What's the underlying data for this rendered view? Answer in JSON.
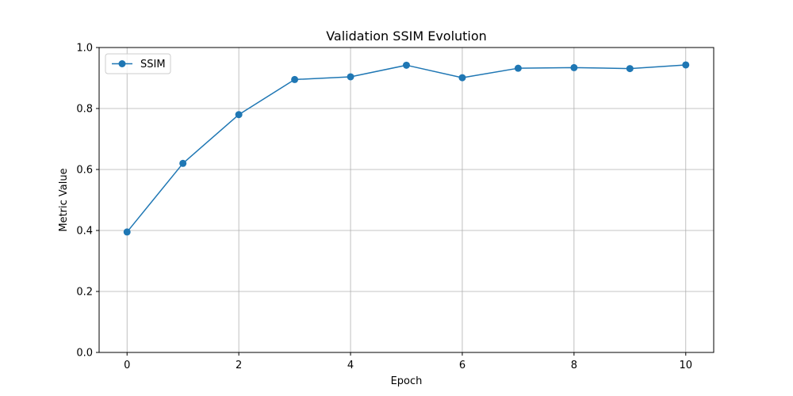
{
  "chart_data": {
    "type": "line",
    "title": "Validation SSIM Evolution",
    "xlabel": "Epoch",
    "ylabel": "Metric Value",
    "xlim": [
      -0.5,
      10.5
    ],
    "ylim": [
      0.0,
      1.0
    ],
    "x_ticks": [
      0,
      2,
      4,
      6,
      8,
      10
    ],
    "y_ticks": [
      0.0,
      0.2,
      0.4,
      0.6,
      0.8,
      1.0
    ],
    "x_tick_labels": [
      "0",
      "2",
      "4",
      "6",
      "8",
      "10"
    ],
    "y_tick_labels": [
      "0.0",
      "0.2",
      "0.4",
      "0.6",
      "0.8",
      "1.0"
    ],
    "grid": true,
    "legend_position": "top-left",
    "series": [
      {
        "name": "SSIM",
        "color": "#1f77b4",
        "marker": "circle",
        "x": [
          0,
          1,
          2,
          3,
          4,
          5,
          6,
          7,
          8,
          9,
          10
        ],
        "values": [
          0.395,
          0.62,
          0.78,
          0.895,
          0.904,
          0.942,
          0.901,
          0.932,
          0.934,
          0.931,
          0.943
        ]
      }
    ]
  }
}
